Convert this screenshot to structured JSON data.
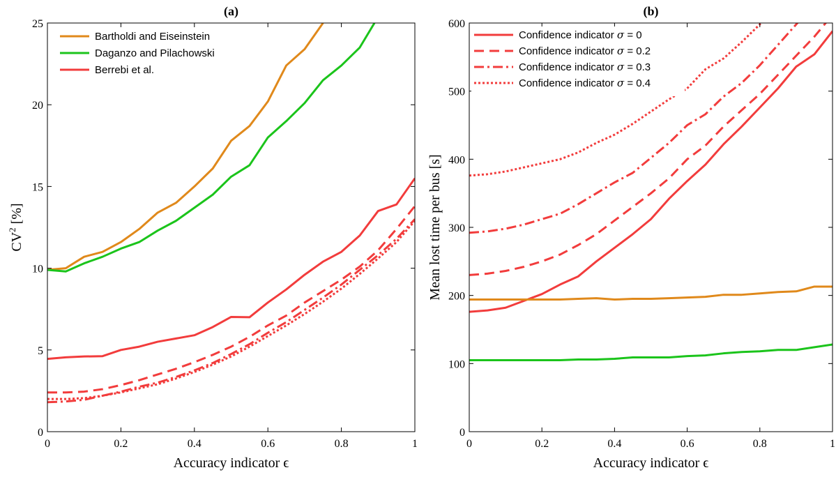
{
  "chart_data": [
    {
      "type": "line",
      "title": "(a)",
      "xlabel": "Accuracy indicator ϵ",
      "ylabel": "CV² [%]",
      "ylabel_main": "CV",
      "ylabel_sup": "2",
      "ylabel_tail": " [%]",
      "xlim": [
        0,
        1
      ],
      "ylim": [
        0,
        25
      ],
      "xticks": [
        0,
        0.2,
        0.4,
        0.6,
        0.8,
        1
      ],
      "xtick_labels": [
        "0",
        "0.2",
        "0.4",
        "0.6",
        "0.8",
        "1"
      ],
      "yticks": [
        0,
        5,
        10,
        15,
        20,
        25
      ],
      "ytick_labels": [
        "0",
        "5",
        "10",
        "15",
        "20",
        "25"
      ],
      "grid": false,
      "legend_position": "top-left",
      "series": [
        {
          "name": "Bartholdi and Eiseinstein",
          "color": "#e0891b",
          "dash": "solid",
          "legend": true,
          "x": [
            0,
            0.05,
            0.1,
            0.15,
            0.2,
            0.25,
            0.3,
            0.35,
            0.4,
            0.45,
            0.5,
            0.55,
            0.6,
            0.65,
            0.7,
            0.75
          ],
          "y": [
            9.9,
            10.0,
            10.7,
            11.0,
            11.6,
            12.4,
            13.4,
            14.0,
            15.0,
            16.1,
            17.8,
            18.7,
            20.2,
            22.4,
            23.4,
            25.0
          ]
        },
        {
          "name": "Daganzo and Pilachowski",
          "color": "#1bc41b",
          "dash": "solid",
          "legend": true,
          "x": [
            0,
            0.05,
            0.1,
            0.15,
            0.2,
            0.25,
            0.3,
            0.35,
            0.4,
            0.45,
            0.5,
            0.55,
            0.6,
            0.65,
            0.7,
            0.75,
            0.8,
            0.85,
            0.89
          ],
          "y": [
            9.9,
            9.8,
            10.3,
            10.7,
            11.2,
            11.6,
            12.3,
            12.9,
            13.7,
            14.5,
            15.6,
            16.3,
            18.0,
            19.0,
            20.1,
            21.5,
            22.4,
            23.5,
            25.0
          ]
        },
        {
          "name": "Berrebi et al.",
          "color": "#f23c3c",
          "dash": "solid",
          "legend": true,
          "x": [
            0,
            0.05,
            0.1,
            0.15,
            0.2,
            0.25,
            0.3,
            0.35,
            0.4,
            0.45,
            0.5,
            0.55,
            0.6,
            0.65,
            0.7,
            0.75,
            0.8,
            0.85,
            0.9,
            0.95,
            1
          ],
          "y": [
            4.45,
            4.55,
            4.6,
            4.62,
            5.0,
            5.2,
            5.5,
            5.7,
            5.9,
            6.4,
            7.02,
            7.0,
            7.9,
            8.7,
            9.6,
            10.4,
            11.0,
            12.0,
            13.5,
            13.9,
            15.5
          ]
        },
        {
          "name": "",
          "color": "#f23c3c",
          "dash": "dashed",
          "legend": false,
          "x": [
            0,
            0.05,
            0.1,
            0.15,
            0.2,
            0.25,
            0.3,
            0.35,
            0.4,
            0.45,
            0.5,
            0.55,
            0.6,
            0.65,
            0.7,
            0.75,
            0.8,
            0.85,
            0.9,
            0.95,
            1
          ],
          "y": [
            2.4,
            2.4,
            2.45,
            2.6,
            2.85,
            3.15,
            3.5,
            3.85,
            4.25,
            4.7,
            5.2,
            5.8,
            6.5,
            7.1,
            7.9,
            8.6,
            9.3,
            10.1,
            11.1,
            12.4,
            13.8
          ]
        },
        {
          "name": "",
          "color": "#f23c3c",
          "dash": "dashdot",
          "legend": false,
          "x": [
            0,
            0.05,
            0.1,
            0.15,
            0.2,
            0.25,
            0.3,
            0.35,
            0.4,
            0.45,
            0.5,
            0.55,
            0.6,
            0.65,
            0.7,
            0.75,
            0.8,
            0.85,
            0.9,
            0.95,
            1
          ],
          "y": [
            1.8,
            1.85,
            1.95,
            2.2,
            2.45,
            2.75,
            3.0,
            3.35,
            3.75,
            4.2,
            4.75,
            5.35,
            6.05,
            6.7,
            7.45,
            8.2,
            9.0,
            9.9,
            10.8,
            11.8,
            13.0
          ]
        },
        {
          "name": "",
          "color": "#f23c3c",
          "dash": "dotted",
          "legend": false,
          "x": [
            0,
            0.05,
            0.1,
            0.15,
            0.2,
            0.25,
            0.3,
            0.35,
            0.4,
            0.45,
            0.5,
            0.55,
            0.6,
            0.65,
            0.7,
            0.75,
            0.8,
            0.85,
            0.9,
            0.95,
            1
          ],
          "y": [
            2.0,
            2.0,
            2.05,
            2.2,
            2.4,
            2.65,
            2.9,
            3.25,
            3.65,
            4.1,
            4.6,
            5.2,
            5.85,
            6.5,
            7.2,
            7.95,
            8.75,
            9.65,
            10.6,
            11.6,
            12.9
          ]
        }
      ]
    },
    {
      "type": "line",
      "title": "(b)",
      "xlabel": "Accuracy indicator ϵ",
      "ylabel": "Mean lost time per bus [s]",
      "xlim": [
        0,
        1
      ],
      "ylim": [
        0,
        600
      ],
      "xticks": [
        0,
        0.2,
        0.4,
        0.6,
        0.8,
        1
      ],
      "xtick_labels": [
        "0",
        "0.2",
        "0.4",
        "0.6",
        "0.8",
        "1"
      ],
      "yticks": [
        0,
        100,
        200,
        300,
        400,
        500,
        600
      ],
      "ytick_labels": [
        "0",
        "100",
        "200",
        "300",
        "400",
        "500",
        "600"
      ],
      "grid": false,
      "legend_position": "top-left",
      "series": [
        {
          "name": "Confidence indicator σ = 0",
          "legend_main": "Confidence indicator ",
          "legend_sym": "σ",
          "legend_tail": " = 0",
          "color": "#f23c3c",
          "dash": "solid",
          "legend": true,
          "x": [
            0,
            0.05,
            0.1,
            0.15,
            0.2,
            0.25,
            0.3,
            0.35,
            0.4,
            0.45,
            0.5,
            0.55,
            0.6,
            0.65,
            0.7,
            0.75,
            0.8,
            0.85,
            0.9,
            0.95,
            1
          ],
          "y": [
            176,
            178,
            182,
            192,
            202,
            216,
            228,
            250,
            270,
            290,
            312,
            342,
            368,
            392,
            422,
            448,
            476,
            504,
            536,
            554,
            588
          ]
        },
        {
          "name": "Confidence indicator σ = 0.2",
          "legend_main": "Confidence indicator ",
          "legend_sym": "σ",
          "legend_tail": " = 0.2",
          "color": "#f23c3c",
          "dash": "dashed",
          "legend": true,
          "x": [
            0,
            0.05,
            0.1,
            0.15,
            0.2,
            0.25,
            0.3,
            0.35,
            0.4,
            0.45,
            0.5,
            0.55,
            0.6,
            0.65,
            0.7,
            0.75,
            0.8,
            0.85,
            0.9,
            0.95,
            1
          ],
          "y": [
            230,
            232,
            236,
            242,
            250,
            260,
            274,
            290,
            310,
            330,
            350,
            372,
            400,
            420,
            448,
            472,
            496,
            524,
            552,
            580,
            612
          ]
        },
        {
          "name": "Confidence indicator σ = 0.3",
          "legend_main": "Confidence indicator ",
          "legend_sym": "σ",
          "legend_tail": " = 0.3",
          "color": "#f23c3c",
          "dash": "dashdot",
          "legend": true,
          "x": [
            0,
            0.05,
            0.1,
            0.15,
            0.2,
            0.25,
            0.3,
            0.35,
            0.4,
            0.45,
            0.5,
            0.55,
            0.6,
            0.65,
            0.7,
            0.75,
            0.8,
            0.85,
            0.9,
            0.95
          ],
          "y": [
            292,
            294,
            298,
            304,
            312,
            320,
            334,
            350,
            366,
            380,
            402,
            424,
            450,
            466,
            492,
            512,
            538,
            568,
            598,
            628
          ]
        },
        {
          "name": "Confidence indicator σ = 0.4",
          "legend_main": "Confidence indicator ",
          "legend_sym": "σ",
          "legend_tail": " = 0.4",
          "color": "#f23c3c",
          "dash": "dotted",
          "legend": true,
          "x": [
            0,
            0.05,
            0.1,
            0.15,
            0.2,
            0.25,
            0.3,
            0.35,
            0.4,
            0.45,
            0.5,
            0.55,
            0.6,
            0.65,
            0.7,
            0.75,
            0.8,
            0.85
          ],
          "y": [
            376,
            378,
            382,
            388,
            394,
            400,
            410,
            424,
            436,
            452,
            470,
            488,
            504,
            532,
            548,
            572,
            598,
            628
          ]
        },
        {
          "name": "",
          "color": "#e0891b",
          "dash": "solid",
          "legend": false,
          "x": [
            0,
            0.05,
            0.1,
            0.15,
            0.2,
            0.25,
            0.3,
            0.35,
            0.4,
            0.45,
            0.5,
            0.55,
            0.6,
            0.65,
            0.7,
            0.75,
            0.8,
            0.85,
            0.9,
            0.95,
            1
          ],
          "y": [
            194,
            194,
            194,
            194,
            194,
            194,
            195,
            196,
            194,
            195,
            195,
            196,
            197,
            198,
            201,
            201,
            203,
            205,
            206,
            213,
            213
          ]
        },
        {
          "name": "",
          "color": "#1bc41b",
          "dash": "solid",
          "legend": false,
          "x": [
            0,
            0.05,
            0.1,
            0.15,
            0.2,
            0.25,
            0.3,
            0.35,
            0.4,
            0.45,
            0.5,
            0.55,
            0.6,
            0.65,
            0.7,
            0.75,
            0.8,
            0.85,
            0.9,
            0.95,
            1
          ],
          "y": [
            105,
            105,
            105,
            105,
            105,
            105,
            106,
            106,
            107,
            109,
            109,
            109,
            111,
            112,
            115,
            117,
            118,
            120,
            120,
            124,
            128
          ]
        }
      ]
    }
  ]
}
